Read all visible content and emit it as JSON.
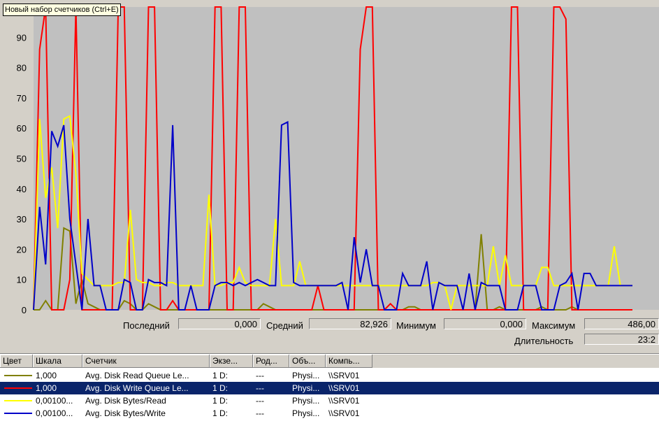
{
  "tooltip": "Новый набор счетчиков (Ctrl+E)",
  "chart_data": {
    "type": "line",
    "ylim": [
      0,
      100
    ],
    "yticks": [
      0,
      10,
      20,
      30,
      40,
      50,
      60,
      70,
      80,
      90
    ],
    "grid": false,
    "x": [
      0,
      1,
      2,
      3,
      4,
      5,
      6,
      7,
      8,
      9,
      10,
      11,
      12,
      13,
      14,
      15,
      16,
      17,
      18,
      19,
      20,
      21,
      22,
      23,
      24,
      25,
      26,
      27,
      28,
      29,
      30,
      31,
      32,
      33,
      34,
      35,
      36,
      37,
      38,
      39,
      40,
      41,
      42,
      43,
      44,
      45,
      46,
      47,
      48,
      49,
      50,
      51,
      52,
      53,
      54,
      55,
      56,
      57,
      58,
      59,
      60,
      61,
      62,
      63,
      64,
      65,
      66,
      67,
      68,
      69,
      70,
      71,
      72,
      73,
      74,
      75,
      76,
      77,
      78,
      79,
      80,
      81,
      82,
      83,
      84,
      85,
      86,
      87,
      88,
      89,
      90,
      91,
      92,
      93,
      94,
      95,
      96,
      97,
      98,
      99
    ],
    "series": [
      {
        "name": "Avg. Disk Read Queue Length",
        "color": "#808000",
        "values": [
          0,
          0,
          3,
          0,
          0,
          27,
          26,
          2,
          10,
          2,
          1,
          0,
          0,
          0,
          0,
          3,
          2,
          0,
          0,
          2,
          1,
          0,
          0,
          0,
          0,
          0,
          0,
          0,
          0,
          0,
          0,
          0,
          0,
          0,
          0,
          0,
          0,
          0,
          2,
          1,
          0,
          0,
          0,
          0,
          0,
          0,
          0,
          0,
          0,
          0,
          0,
          0,
          0,
          0,
          0,
          0,
          0,
          0,
          0,
          0,
          0,
          0,
          1,
          1,
          0,
          0,
          0,
          0,
          0,
          0,
          0,
          0,
          0,
          0,
          25,
          0,
          0,
          1,
          0,
          0,
          0,
          0,
          0,
          0,
          1,
          0,
          0,
          0,
          0,
          1,
          0,
          0,
          0,
          0,
          0,
          0,
          0,
          0,
          0,
          0
        ]
      },
      {
        "name": "Avg. Disk Write Queue Length",
        "color": "#ff0000",
        "values": [
          0,
          86,
          100,
          0,
          0,
          0,
          10,
          100,
          0,
          0,
          0,
          0,
          0,
          0,
          100,
          100,
          0,
          0,
          0,
          100,
          100,
          0,
          0,
          3,
          0,
          0,
          0,
          0,
          0,
          0,
          100,
          100,
          0,
          0,
          100,
          100,
          0,
          0,
          0,
          0,
          0,
          0,
          0,
          0,
          0,
          0,
          0,
          8,
          0,
          0,
          0,
          0,
          0,
          0,
          86,
          100,
          100,
          0,
          0,
          2,
          0,
          0,
          0,
          0,
          0,
          0,
          0,
          0,
          0,
          0,
          0,
          0,
          0,
          0,
          0,
          0,
          0,
          0,
          0,
          100,
          100,
          0,
          0,
          0,
          0,
          0,
          100,
          100,
          96,
          0,
          0,
          0,
          0,
          0,
          0,
          0,
          0,
          0,
          0,
          0
        ]
      },
      {
        "name": "Avg. Disk Bytes/Read",
        "color": "#ffff00",
        "values": [
          0,
          63,
          37,
          47,
          27,
          63,
          64,
          45,
          12,
          10,
          8,
          8,
          8,
          8,
          9,
          9,
          33,
          10,
          9,
          9,
          8,
          8,
          9,
          9,
          8,
          8,
          8,
          8,
          8,
          38,
          8,
          8,
          9,
          9,
          14,
          9,
          8,
          8,
          8,
          8,
          30,
          8,
          8,
          8,
          16,
          8,
          8,
          8,
          8,
          8,
          8,
          8,
          8,
          8,
          8,
          8,
          8,
          8,
          8,
          8,
          8,
          8,
          8,
          8,
          8,
          8,
          9,
          9,
          8,
          0,
          8,
          8,
          8,
          8,
          8,
          8,
          21,
          8,
          18,
          8,
          8,
          8,
          8,
          8,
          14,
          14,
          8,
          8,
          8,
          8,
          8,
          8,
          8,
          8,
          8,
          8,
          21,
          8,
          8,
          8
        ]
      },
      {
        "name": "Avg. Disk Bytes/Write",
        "color": "#0000c8",
        "values": [
          0,
          34,
          15,
          59,
          54,
          61,
          30,
          15,
          0,
          30,
          8,
          8,
          0,
          0,
          0,
          10,
          9,
          0,
          0,
          10,
          9,
          9,
          8,
          61,
          0,
          0,
          8,
          0,
          0,
          0,
          8,
          9,
          9,
          8,
          9,
          8,
          9,
          10,
          9,
          8,
          8,
          61,
          62,
          9,
          8,
          8,
          8,
          8,
          8,
          8,
          8,
          9,
          0,
          24,
          9,
          20,
          8,
          8,
          0,
          0,
          0,
          12,
          8,
          8,
          8,
          16,
          0,
          9,
          8,
          8,
          8,
          0,
          12,
          0,
          9,
          8,
          8,
          8,
          0,
          0,
          0,
          8,
          8,
          8,
          0,
          0,
          0,
          8,
          9,
          12,
          0,
          12,
          12,
          8,
          8,
          8,
          8,
          8,
          8,
          8
        ]
      }
    ]
  },
  "stats": {
    "last_label": "Последний",
    "last_value": "0,000",
    "avg_label": "Средний",
    "avg_value": "82,926",
    "min_label": "Минимум",
    "min_value": "0,000",
    "max_label": "Максимум",
    "max_value": "486,00",
    "duration_label": "Длительность",
    "duration_value": "23:2"
  },
  "table": {
    "headers": [
      "Цвет",
      "Шкала",
      "Счетчик",
      "Экзе...",
      "Род...",
      "Объ...",
      "Компь..."
    ],
    "rows": [
      {
        "color": "#808000",
        "scale": "1,000",
        "counter": "Avg. Disk Read Queue Le...",
        "instance": "1 D:",
        "parent": "---",
        "object": "Physi...",
        "computer": "\\\\SRV01",
        "selected": false
      },
      {
        "color": "#ff0000",
        "scale": "1,000",
        "counter": "Avg. Disk Write Queue Le...",
        "instance": "1 D:",
        "parent": "---",
        "object": "Physi...",
        "computer": "\\\\SRV01",
        "selected": true
      },
      {
        "color": "#ffff00",
        "scale": "0,00100...",
        "counter": "Avg. Disk Bytes/Read",
        "instance": "1 D:",
        "parent": "---",
        "object": "Physi...",
        "computer": "\\\\SRV01",
        "selected": false
      },
      {
        "color": "#0000c8",
        "scale": "0,00100...",
        "counter": "Avg. Disk Bytes/Write",
        "instance": "1 D:",
        "parent": "---",
        "object": "Physi...",
        "computer": "\\\\SRV01",
        "selected": false
      }
    ]
  }
}
